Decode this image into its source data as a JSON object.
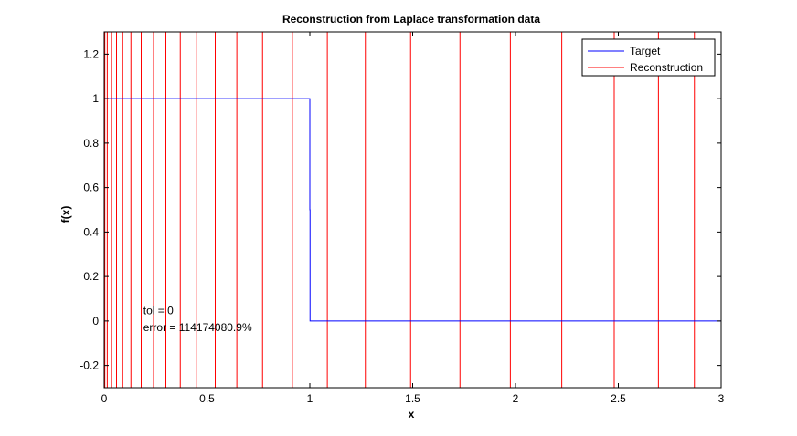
{
  "chart_data": {
    "type": "line",
    "title": "Reconstruction from Laplace transformation data",
    "xlabel": "x",
    "ylabel": "f(x)",
    "xlim": [
      0,
      3
    ],
    "ylim": [
      -0.3,
      1.3
    ],
    "x_ticks": [
      0,
      0.5,
      1,
      1.5,
      2,
      2.5,
      3
    ],
    "x_tick_labels": [
      "0",
      "0.5",
      "1",
      "1.5",
      "2",
      "2.5",
      "3"
    ],
    "y_ticks": [
      -0.2,
      0,
      0.2,
      0.4,
      0.6,
      0.8,
      1,
      1.2
    ],
    "y_tick_labels": [
      "-0.2",
      "0",
      "0.2",
      "0.4",
      "0.6",
      "0.8",
      "1",
      "1.2"
    ],
    "grid": false,
    "legend_position": "top-right",
    "series": [
      {
        "name": "Target",
        "color": "#0000ff",
        "x": [
          0,
          1,
          1,
          1.001,
          1.001,
          3
        ],
        "y": [
          1,
          1,
          0.5,
          0.5,
          0,
          0
        ]
      },
      {
        "name": "Reconstruction",
        "color": "#ff0000",
        "style": "vertical-lines",
        "x": [
          0.003,
          0.015,
          0.035,
          0.06,
          0.09,
          0.13,
          0.18,
          0.24,
          0.3,
          0.37,
          0.45,
          0.54,
          0.645,
          0.77,
          0.915,
          1.085,
          1.27,
          1.49,
          1.73,
          1.975,
          2.225,
          2.48,
          2.695,
          2.87,
          2.98
        ]
      }
    ],
    "annotations": [
      {
        "text": "tol = 0",
        "x": 0.19,
        "y": 0.03
      },
      {
        "text": "error = 114174080.9%",
        "x": 0.19,
        "y": -0.045
      }
    ]
  }
}
